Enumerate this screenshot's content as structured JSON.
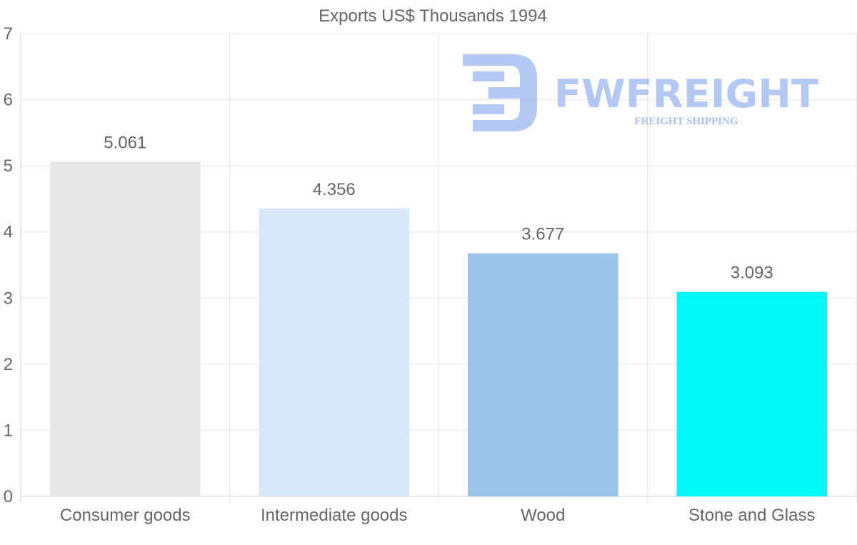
{
  "chart_data": {
    "type": "bar",
    "title": "Exports US$ Thousands 1994",
    "categories": [
      "Consumer goods",
      "Intermediate goods",
      "Wood",
      "Stone and Glass"
    ],
    "values": [
      5.061,
      4.356,
      3.677,
      3.093
    ],
    "value_labels": [
      "5.061",
      "4.356",
      "3.677",
      "3.093"
    ],
    "colors": [
      "#e8e8e8",
      "#d8e8fa",
      "#9cc4e8",
      "#00f8f8"
    ],
    "ylim": [
      0,
      7
    ],
    "yticks": [
      "0",
      "1",
      "2",
      "3",
      "4",
      "5",
      "6",
      "7"
    ],
    "xlabel": "",
    "ylabel": "",
    "grid": true
  },
  "watermark": {
    "brand": "FWFREIGHT",
    "tagline": "FREIGHT SHIPPING"
  }
}
